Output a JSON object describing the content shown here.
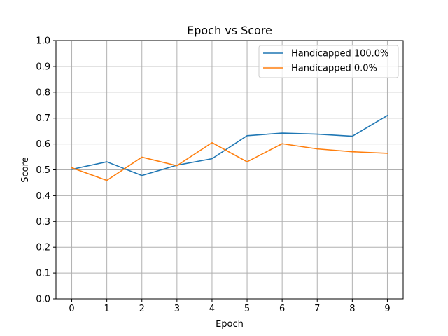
{
  "chart_data": {
    "type": "line",
    "title": "Epoch vs Score",
    "xlabel": "Epoch",
    "ylabel": "Score",
    "x": [
      0,
      1,
      2,
      3,
      4,
      5,
      6,
      7,
      8,
      9
    ],
    "xlim": [
      -0.45,
      9.45
    ],
    "ylim": [
      0.0,
      1.0
    ],
    "xticks": [
      "0",
      "1",
      "2",
      "3",
      "4",
      "5",
      "6",
      "7",
      "8",
      "9"
    ],
    "yticks": [
      "0.0",
      "0.1",
      "0.2",
      "0.3",
      "0.4",
      "0.5",
      "0.6",
      "0.7",
      "0.8",
      "0.9",
      "1.0"
    ],
    "grid": true,
    "legend_position": "top-right",
    "series": [
      {
        "name": "Handicapped 100.0%",
        "color": "#1f77b4",
        "values": [
          0.502,
          0.531,
          0.478,
          0.518,
          0.543,
          0.632,
          0.642,
          0.638,
          0.63,
          0.71
        ]
      },
      {
        "name": "Handicapped 0.0%",
        "color": "#ff7f0e",
        "values": [
          0.508,
          0.459,
          0.549,
          0.516,
          0.605,
          0.531,
          0.601,
          0.581,
          0.57,
          0.564
        ]
      }
    ]
  }
}
